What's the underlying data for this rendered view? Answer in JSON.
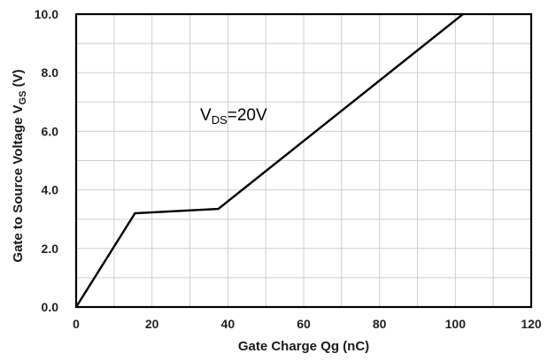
{
  "chart_data": {
    "type": "line",
    "xlabel": "Gate Charge Qg (nC)",
    "ylabel": {
      "main": "Gate to Source  Voltage V",
      "sub": "GS",
      "tail": " (V)"
    },
    "xlim": [
      0,
      120
    ],
    "ylim": [
      0,
      10
    ],
    "x_ticks": [
      "0",
      "20",
      "40",
      "60",
      "80",
      "100",
      "120"
    ],
    "y_ticks": [
      "0.0",
      "2.0",
      "4.0",
      "6.0",
      "8.0",
      "10.0"
    ],
    "grid": true,
    "series": [
      {
        "x": [
          0,
          15.5,
          37.5,
          102
        ],
        "y": [
          0,
          3.2,
          3.35,
          10
        ]
      }
    ],
    "annotation": {
      "main": "V",
      "sub": "DS",
      "tail": "=20V"
    }
  }
}
